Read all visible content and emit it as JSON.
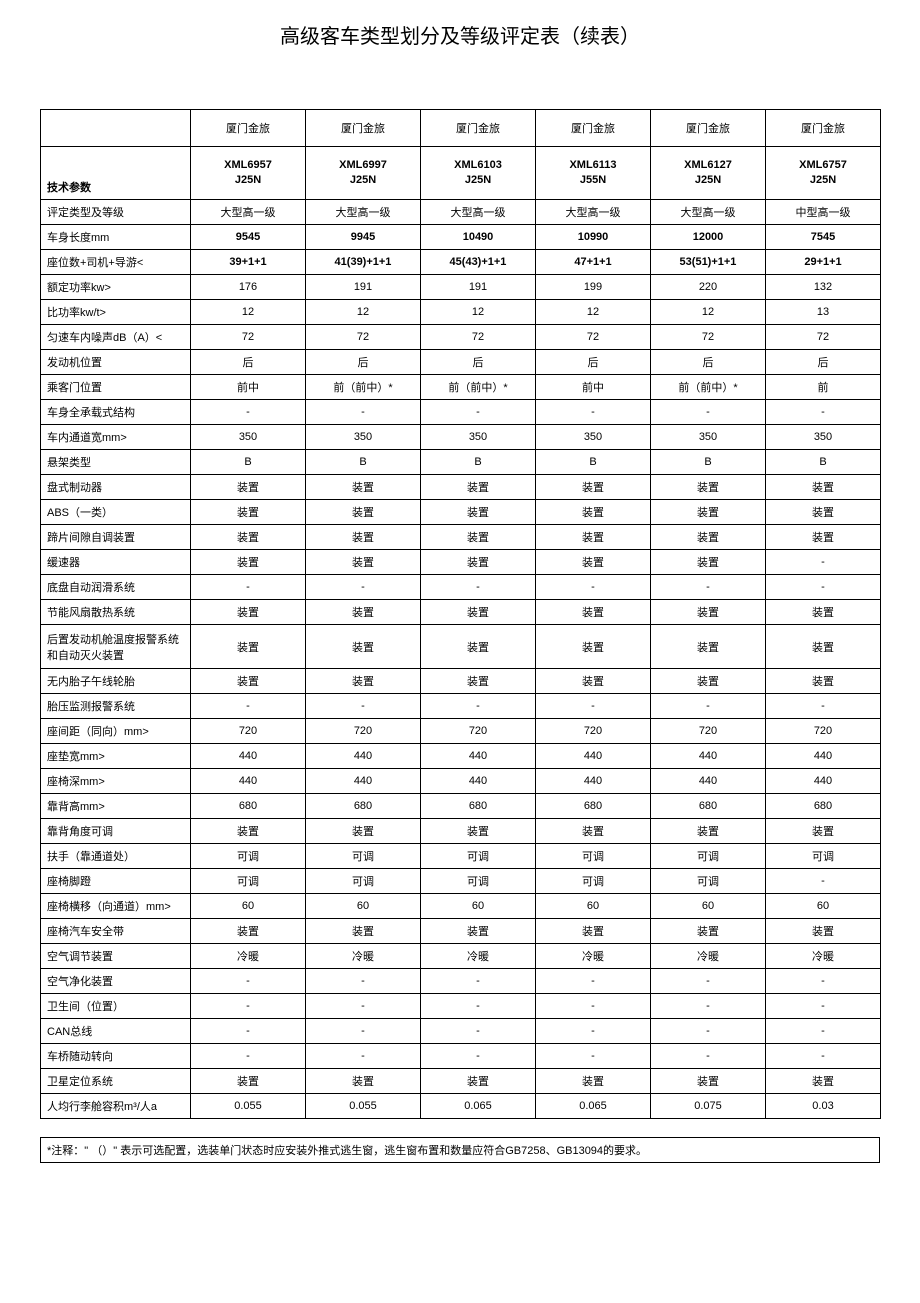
{
  "title": "高级客车类型划分及等级评定表（续表）",
  "brand": "厦门金旅",
  "tech_param_label": "技术参数",
  "models": [
    {
      "line1": "XML6957",
      "line2": "J25N"
    },
    {
      "line1": "XML6997",
      "line2": "J25N"
    },
    {
      "line1": "XML6103",
      "line2": "J25N"
    },
    {
      "line1": "XML6113",
      "line2": "J55N"
    },
    {
      "line1": "XML6127",
      "line2": "J25N"
    },
    {
      "line1": "XML6757",
      "line2": "J25N"
    }
  ],
  "rows": [
    {
      "label": "评定类型及等级",
      "vals": [
        "大型高一级",
        "大型高一级",
        "大型高一级",
        "大型高一级",
        "大型高一级",
        "中型高一级"
      ],
      "bold": false
    },
    {
      "label": "车身长度mm",
      "vals": [
        "9545",
        "9945",
        "10490",
        "10990",
        "12000",
        "7545"
      ],
      "bold": true
    },
    {
      "label": "座位数+司机+导游<",
      "vals": [
        "39+1+1",
        "41(39)+1+1",
        "45(43)+1+1",
        "47+1+1",
        "53(51)+1+1",
        "29+1+1"
      ],
      "bold": true
    },
    {
      "label": "额定功率kw>",
      "vals": [
        "176",
        "191",
        "191",
        "199",
        "220",
        "132"
      ],
      "bold": false
    },
    {
      "label": "比功率kw/t>",
      "vals": [
        "12",
        "12",
        "12",
        "12",
        "12",
        "13"
      ],
      "bold": false
    },
    {
      "label": "匀速车内噪声dB（A）<",
      "vals": [
        "72",
        "72",
        "72",
        "72",
        "72",
        "72"
      ],
      "bold": false
    },
    {
      "label": "发动机位置",
      "vals": [
        "后",
        "后",
        "后",
        "后",
        "后",
        "后"
      ],
      "bold": false
    },
    {
      "label": "乘客门位置",
      "vals": [
        "前中",
        "前（前中）*",
        "前（前中）*",
        "前中",
        "前（前中）*",
        "前"
      ],
      "bold": false
    },
    {
      "label": "车身全承载式结构",
      "vals": [
        "-",
        "-",
        "-",
        "-",
        "-",
        "-"
      ],
      "bold": false
    },
    {
      "label": "车内通道宽mm>",
      "vals": [
        "350",
        "350",
        "350",
        "350",
        "350",
        "350"
      ],
      "bold": false
    },
    {
      "label": "悬架类型",
      "vals": [
        "B",
        "B",
        "B",
        "B",
        "B",
        "B"
      ],
      "bold": false
    },
    {
      "label": "盘式制动器",
      "vals": [
        "装置",
        "装置",
        "装置",
        "装置",
        "装置",
        "装置"
      ],
      "bold": false
    },
    {
      "label": "ABS（一类）",
      "vals": [
        "装置",
        "装置",
        "装置",
        "装置",
        "装置",
        "装置"
      ],
      "bold": false
    },
    {
      "label": "蹄片间隙自调装置",
      "vals": [
        "装置",
        "装置",
        "装置",
        "装置",
        "装置",
        "装置"
      ],
      "bold": false
    },
    {
      "label": "缓速器",
      "vals": [
        "装置",
        "装置",
        "装置",
        "装置",
        "装置",
        "-"
      ],
      "bold": false
    },
    {
      "label": "底盘自动润滑系统",
      "vals": [
        "-",
        "-",
        "-",
        "-",
        "-",
        "-"
      ],
      "bold": false
    },
    {
      "label": "节能风扇散热系统",
      "vals": [
        "装置",
        "装置",
        "装置",
        "装置",
        "装置",
        "装置"
      ],
      "bold": false
    },
    {
      "label": "后置发动机舱温度报警系统和自动灭火装置",
      "vals": [
        "装置",
        "装置",
        "装置",
        "装置",
        "装置",
        "装置"
      ],
      "bold": false,
      "tall": true
    },
    {
      "label": "无内胎子午线轮胎",
      "vals": [
        "装置",
        "装置",
        "装置",
        "装置",
        "装置",
        "装置"
      ],
      "bold": false
    },
    {
      "label": "胎压监测报警系统",
      "vals": [
        "-",
        "-",
        "-",
        "-",
        "-",
        "-"
      ],
      "bold": false
    },
    {
      "label": "座间距（同向）mm>",
      "vals": [
        "720",
        "720",
        "720",
        "720",
        "720",
        "720"
      ],
      "bold": false
    },
    {
      "label": "座垫宽mm>",
      "vals": [
        "440",
        "440",
        "440",
        "440",
        "440",
        "440"
      ],
      "bold": false
    },
    {
      "label": "座椅深mm>",
      "vals": [
        "440",
        "440",
        "440",
        "440",
        "440",
        "440"
      ],
      "bold": false
    },
    {
      "label": "靠背高mm>",
      "vals": [
        "680",
        "680",
        "680",
        "680",
        "680",
        "680"
      ],
      "bold": false
    },
    {
      "label": "靠背角度可调",
      "vals": [
        "装置",
        "装置",
        "装置",
        "装置",
        "装置",
        "装置"
      ],
      "bold": false
    },
    {
      "label": "扶手（靠通道处）",
      "vals": [
        "可调",
        "可调",
        "可调",
        "可调",
        "可调",
        "可调"
      ],
      "bold": false
    },
    {
      "label": "座椅脚蹬",
      "vals": [
        "可调",
        "可调",
        "可调",
        "可调",
        "可调",
        "-"
      ],
      "bold": false
    },
    {
      "label": "座椅横移（向通道）mm>",
      "vals": [
        "60",
        "60",
        "60",
        "60",
        "60",
        "60"
      ],
      "bold": false
    },
    {
      "label": "座椅汽车安全带",
      "vals": [
        "装置",
        "装置",
        "装置",
        "装置",
        "装置",
        "装置"
      ],
      "bold": false
    },
    {
      "label": "空气调节装置",
      "vals": [
        "冷暖",
        "冷暖",
        "冷暖",
        "冷暖",
        "冷暖",
        "冷暖"
      ],
      "bold": false
    },
    {
      "label": "空气净化装置",
      "vals": [
        "-",
        "-",
        "-",
        "-",
        "-",
        "-"
      ],
      "bold": false
    },
    {
      "label": "卫生间（位置）",
      "vals": [
        "-",
        "-",
        "-",
        "-",
        "-",
        "-"
      ],
      "bold": false
    },
    {
      "label": "CAN总线",
      "vals": [
        "-",
        "-",
        "-",
        "-",
        "-",
        "-"
      ],
      "bold": false
    },
    {
      "label": "车桥随动转向",
      "vals": [
        "-",
        "-",
        "-",
        "-",
        "-",
        "-"
      ],
      "bold": false
    },
    {
      "label": "卫星定位系统",
      "vals": [
        "装置",
        "装置",
        "装置",
        "装置",
        "装置",
        "装置"
      ],
      "bold": false
    },
    {
      "label": "人均行李舱容积m³/人a",
      "vals": [
        "0.055",
        "0.055",
        "0.065",
        "0.065",
        "0.075",
        "0.03"
      ],
      "bold": false
    }
  ],
  "footnote": "*注释：\" （）\" 表示可选配置，选装单门状态时应安装外推式逃生窗，逃生窗布置和数量应符合GB7258、GB13094的要求。"
}
